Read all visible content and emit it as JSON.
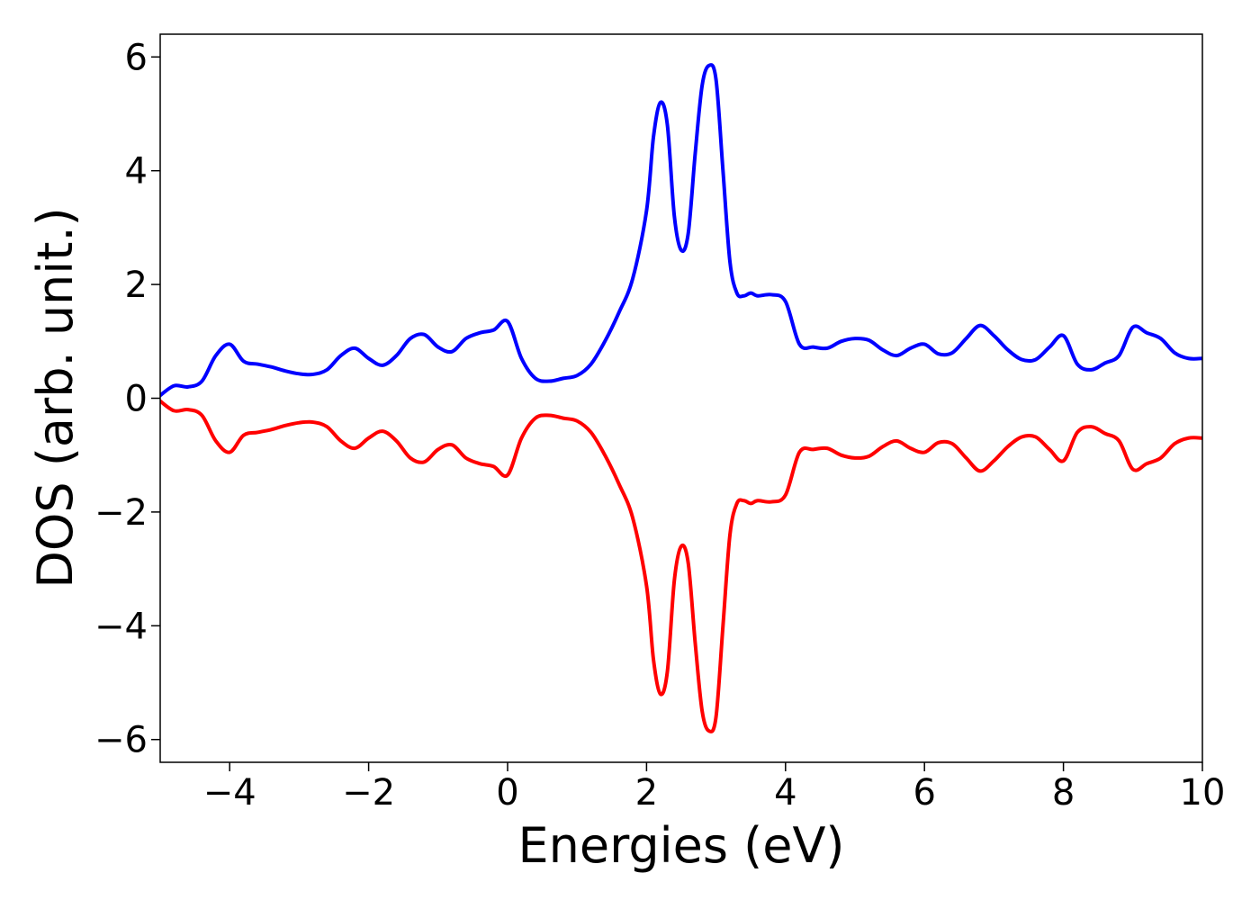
{
  "chart_data": {
    "type": "line",
    "title": "",
    "xlabel": "Energies (eV)",
    "ylabel": "DOS (arb. unit.)",
    "xlim": [
      -5,
      10
    ],
    "ylim": [
      -6.4,
      6.4
    ],
    "grid": false,
    "legend": "none",
    "x_ticks": [
      -4,
      -2,
      0,
      2,
      4,
      6,
      8,
      10
    ],
    "x_tick_labels": [
      "−4",
      "−2",
      "0",
      "2",
      "4",
      "6",
      "8",
      "10"
    ],
    "y_ticks": [
      -6,
      -4,
      -2,
      0,
      2,
      4,
      6
    ],
    "y_tick_labels": [
      "−6",
      "−4",
      "−2",
      "0",
      "2",
      "4",
      "6"
    ],
    "series": [
      {
        "color": "#0000ff",
        "x": [
          -5.0,
          -4.8,
          -4.6,
          -4.4,
          -4.2,
          -4.0,
          -3.8,
          -3.6,
          -3.4,
          -3.2,
          -3.0,
          -2.8,
          -2.6,
          -2.4,
          -2.2,
          -2.0,
          -1.8,
          -1.6,
          -1.4,
          -1.2,
          -1.0,
          -0.8,
          -0.6,
          -0.4,
          -0.2,
          0.0,
          0.2,
          0.4,
          0.6,
          0.8,
          1.0,
          1.2,
          1.4,
          1.6,
          1.8,
          2.0,
          2.1,
          2.2,
          2.3,
          2.4,
          2.5,
          2.6,
          2.7,
          2.8,
          2.9,
          3.0,
          3.1,
          3.2,
          3.3,
          3.4,
          3.5,
          3.6,
          3.8,
          4.0,
          4.2,
          4.4,
          4.6,
          4.8,
          5.0,
          5.2,
          5.4,
          5.6,
          5.8,
          6.0,
          6.2,
          6.4,
          6.6,
          6.8,
          7.0,
          7.2,
          7.4,
          7.6,
          7.8,
          8.0,
          8.2,
          8.4,
          8.6,
          8.8,
          9.0,
          9.2,
          9.4,
          9.6,
          9.8,
          10.0
        ],
        "y": [
          0.05,
          0.22,
          0.2,
          0.3,
          0.75,
          0.95,
          0.65,
          0.6,
          0.55,
          0.48,
          0.43,
          0.42,
          0.5,
          0.75,
          0.88,
          0.7,
          0.58,
          0.75,
          1.05,
          1.12,
          0.9,
          0.82,
          1.05,
          1.15,
          1.2,
          1.35,
          0.7,
          0.35,
          0.3,
          0.35,
          0.4,
          0.6,
          1.0,
          1.5,
          2.1,
          3.3,
          4.6,
          5.2,
          4.8,
          3.2,
          2.6,
          2.9,
          4.3,
          5.5,
          5.85,
          5.6,
          4.0,
          2.4,
          1.85,
          1.8,
          1.85,
          1.8,
          1.82,
          1.7,
          0.95,
          0.9,
          0.88,
          1.0,
          1.05,
          1.02,
          0.85,
          0.75,
          0.88,
          0.95,
          0.78,
          0.8,
          1.05,
          1.28,
          1.1,
          0.85,
          0.68,
          0.68,
          0.9,
          1.1,
          0.6,
          0.5,
          0.62,
          0.75,
          1.25,
          1.15,
          1.05,
          0.8,
          0.7,
          0.7
        ]
      },
      {
        "color": "#ff0000",
        "x": [
          -5.0,
          -4.8,
          -4.6,
          -4.4,
          -4.2,
          -4.0,
          -3.8,
          -3.6,
          -3.4,
          -3.2,
          -3.0,
          -2.8,
          -2.6,
          -2.4,
          -2.2,
          -2.0,
          -1.8,
          -1.6,
          -1.4,
          -1.2,
          -1.0,
          -0.8,
          -0.6,
          -0.4,
          -0.2,
          0.0,
          0.2,
          0.4,
          0.6,
          0.8,
          1.0,
          1.2,
          1.4,
          1.6,
          1.8,
          2.0,
          2.1,
          2.2,
          2.3,
          2.4,
          2.5,
          2.6,
          2.7,
          2.8,
          2.9,
          3.0,
          3.1,
          3.2,
          3.3,
          3.4,
          3.5,
          3.6,
          3.8,
          4.0,
          4.2,
          4.4,
          4.6,
          4.8,
          5.0,
          5.2,
          5.4,
          5.6,
          5.8,
          6.0,
          6.2,
          6.4,
          6.6,
          6.8,
          7.0,
          7.2,
          7.4,
          7.6,
          7.8,
          8.0,
          8.2,
          8.4,
          8.6,
          8.8,
          9.0,
          9.2,
          9.4,
          9.6,
          9.8,
          10.0
        ],
        "y": [
          -0.05,
          -0.22,
          -0.2,
          -0.3,
          -0.75,
          -0.95,
          -0.65,
          -0.6,
          -0.55,
          -0.48,
          -0.43,
          -0.42,
          -0.5,
          -0.75,
          -0.88,
          -0.7,
          -0.58,
          -0.75,
          -1.05,
          -1.12,
          -0.9,
          -0.82,
          -1.05,
          -1.15,
          -1.2,
          -1.35,
          -0.7,
          -0.35,
          -0.3,
          -0.35,
          -0.4,
          -0.6,
          -1.0,
          -1.5,
          -2.1,
          -3.3,
          -4.6,
          -5.2,
          -4.8,
          -3.2,
          -2.6,
          -2.9,
          -4.3,
          -5.5,
          -5.85,
          -5.6,
          -4.0,
          -2.4,
          -1.85,
          -1.8,
          -1.85,
          -1.8,
          -1.82,
          -1.7,
          -0.95,
          -0.9,
          -0.88,
          -1.0,
          -1.05,
          -1.02,
          -0.85,
          -0.75,
          -0.88,
          -0.95,
          -0.78,
          -0.8,
          -1.05,
          -1.28,
          -1.1,
          -0.85,
          -0.68,
          -0.68,
          -0.9,
          -1.1,
          -0.6,
          -0.5,
          -0.62,
          -0.75,
          -1.25,
          -1.15,
          -1.05,
          -0.8,
          -0.7,
          -0.7
        ]
      }
    ]
  }
}
